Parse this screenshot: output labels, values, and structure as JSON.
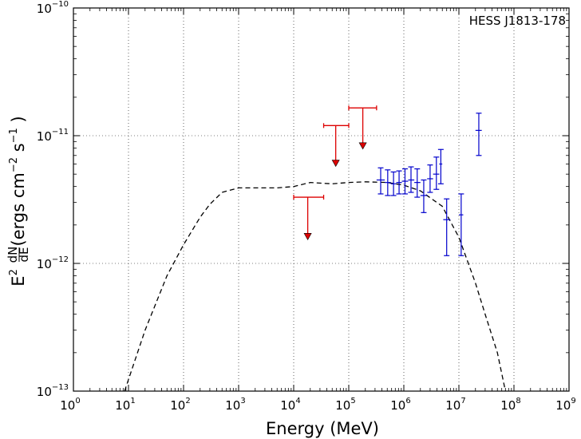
{
  "chart_data": {
    "type": "scatter",
    "title": "",
    "annotation": "HESS J1813-178",
    "xlabel": "Energy (MeV)",
    "ylabel": {
      "prefix": "E",
      "sup": "2",
      "frac_num": "dN",
      "frac_den": "dE",
      "open": "(ergs cm",
      "sup1": "−2",
      "mid": " s",
      "sup2": "−1",
      "close": " )"
    },
    "x_scale": "log",
    "y_scale": "log",
    "xlim": [
      1,
      1000000000
    ],
    "ylim": [
      1e-13,
      1e-10
    ],
    "x_ticks": [
      {
        "base": "10",
        "exp": "0",
        "value": 1
      },
      {
        "base": "10",
        "exp": "1",
        "value": 10
      },
      {
        "base": "10",
        "exp": "2",
        "value": 100
      },
      {
        "base": "10",
        "exp": "3",
        "value": 1000
      },
      {
        "base": "10",
        "exp": "4",
        "value": 10000
      },
      {
        "base": "10",
        "exp": "5",
        "value": 100000
      },
      {
        "base": "10",
        "exp": "6",
        "value": 1000000
      },
      {
        "base": "10",
        "exp": "7",
        "value": 10000000
      },
      {
        "base": "10",
        "exp": "8",
        "value": 100000000
      },
      {
        "base": "10",
        "exp": "9",
        "value": 1000000000
      }
    ],
    "y_ticks": [
      {
        "base": "10",
        "exp": "−13",
        "value": 1e-13
      },
      {
        "base": "10",
        "exp": "−12",
        "value": 1e-12
      },
      {
        "base": "10",
        "exp": "−11",
        "value": 1e-11
      },
      {
        "base": "10",
        "exp": "−10",
        "value": 1e-10
      }
    ],
    "grid": true,
    "model_curve": {
      "style": "dashed",
      "color": "#000000",
      "points": [
        [
          8.5,
          1e-13
        ],
        [
          20,
          3e-13
        ],
        [
          50,
          8e-13
        ],
        [
          100,
          1.4e-12
        ],
        [
          200,
          2.3e-12
        ],
        [
          300,
          2.9e-12
        ],
        [
          500,
          3.6e-12
        ],
        [
          1000,
          3.9e-12
        ],
        [
          2000,
          3.9e-12
        ],
        [
          5000,
          3.9e-12
        ],
        [
          10000,
          4e-12
        ],
        [
          20000,
          4.3e-12
        ],
        [
          50000,
          4.2e-12
        ],
        [
          100000,
          4.3e-12
        ],
        [
          200000,
          4.35e-12
        ],
        [
          500000,
          4.3e-12
        ],
        [
          1000000,
          4.1e-12
        ],
        [
          2000000,
          3.7e-12
        ],
        [
          5000000,
          2.8e-12
        ],
        [
          10000000,
          1.6e-12
        ],
        [
          20000000,
          7e-13
        ],
        [
          30000000,
          4e-13
        ],
        [
          50000000,
          2e-13
        ],
        [
          70000000,
          1e-13
        ]
      ]
    },
    "upper_limits": {
      "color": "#dd0000",
      "points": [
        {
          "x": 18000,
          "x_low": 10000,
          "x_high": 35000,
          "y": 3.3e-12,
          "y_arrow_end": 1.6e-12
        },
        {
          "x": 58000,
          "x_low": 35000,
          "x_high": 100000,
          "y": 1.2e-11,
          "y_arrow_end": 6e-12
        },
        {
          "x": 180000,
          "x_low": 100000,
          "x_high": 320000,
          "y": 1.65e-11,
          "y_arrow_end": 8.2e-12
        }
      ]
    },
    "measurements": {
      "color": "#0000cc",
      "points": [
        {
          "x": 380000,
          "x_low": 320000,
          "x_high": 450000,
          "y": 4.5e-12,
          "y_low": 3.5e-12,
          "y_high": 5.6e-12
        },
        {
          "x": 510000,
          "x_low": 450000,
          "x_high": 580000,
          "y": 4.3e-12,
          "y_low": 3.4e-12,
          "y_high": 5.4e-12
        },
        {
          "x": 650000,
          "x_low": 580000,
          "x_high": 730000,
          "y": 4.2e-12,
          "y_low": 3.4e-12,
          "y_high": 5.2e-12
        },
        {
          "x": 820000,
          "x_low": 730000,
          "x_high": 920000,
          "y": 4.3e-12,
          "y_low": 3.5e-12,
          "y_high": 5.3e-12
        },
        {
          "x": 1050000,
          "x_low": 920000,
          "x_high": 1200000,
          "y": 4.4e-12,
          "y_low": 3.5e-12,
          "y_high": 5.5e-12
        },
        {
          "x": 1350000,
          "x_low": 1200000,
          "x_high": 1550000,
          "y": 4.5e-12,
          "y_low": 3.6e-12,
          "y_high": 5.7e-12
        },
        {
          "x": 1750000,
          "x_low": 1550000,
          "x_high": 2000000,
          "y": 4.3e-12,
          "y_low": 3.3e-12,
          "y_high": 5.5e-12
        },
        {
          "x": 2300000,
          "x_low": 2000000,
          "x_high": 2650000,
          "y": 3.4e-12,
          "y_low": 2.5e-12,
          "y_high": 4.5e-12
        },
        {
          "x": 3000000,
          "x_low": 2650000,
          "x_high": 3400000,
          "y": 4.6e-12,
          "y_low": 3.6e-12,
          "y_high": 5.9e-12
        },
        {
          "x": 3900000,
          "x_low": 3400000,
          "x_high": 4400000,
          "y": 5e-12,
          "y_low": 3.8e-12,
          "y_high": 6.8e-12
        },
        {
          "x": 4700000,
          "x_low": 4400000,
          "x_high": 5000000,
          "y": 6e-12,
          "y_low": 4.2e-12,
          "y_high": 7.8e-12
        },
        {
          "x": 6000000,
          "x_low": 5200000,
          "x_high": 7000000,
          "y": 2.2e-12,
          "y_low": 1.15e-12,
          "y_high": 3.2e-12
        },
        {
          "x": 11000000,
          "x_low": 10000000,
          "x_high": 12000000,
          "y": 2.4e-12,
          "y_low": 1.15e-12,
          "y_high": 3.5e-12
        },
        {
          "x": 23000000,
          "x_low": 20000000,
          "x_high": 26000000,
          "y": 1.1e-11,
          "y_low": 7e-12,
          "y_high": 1.5e-11
        }
      ]
    }
  }
}
